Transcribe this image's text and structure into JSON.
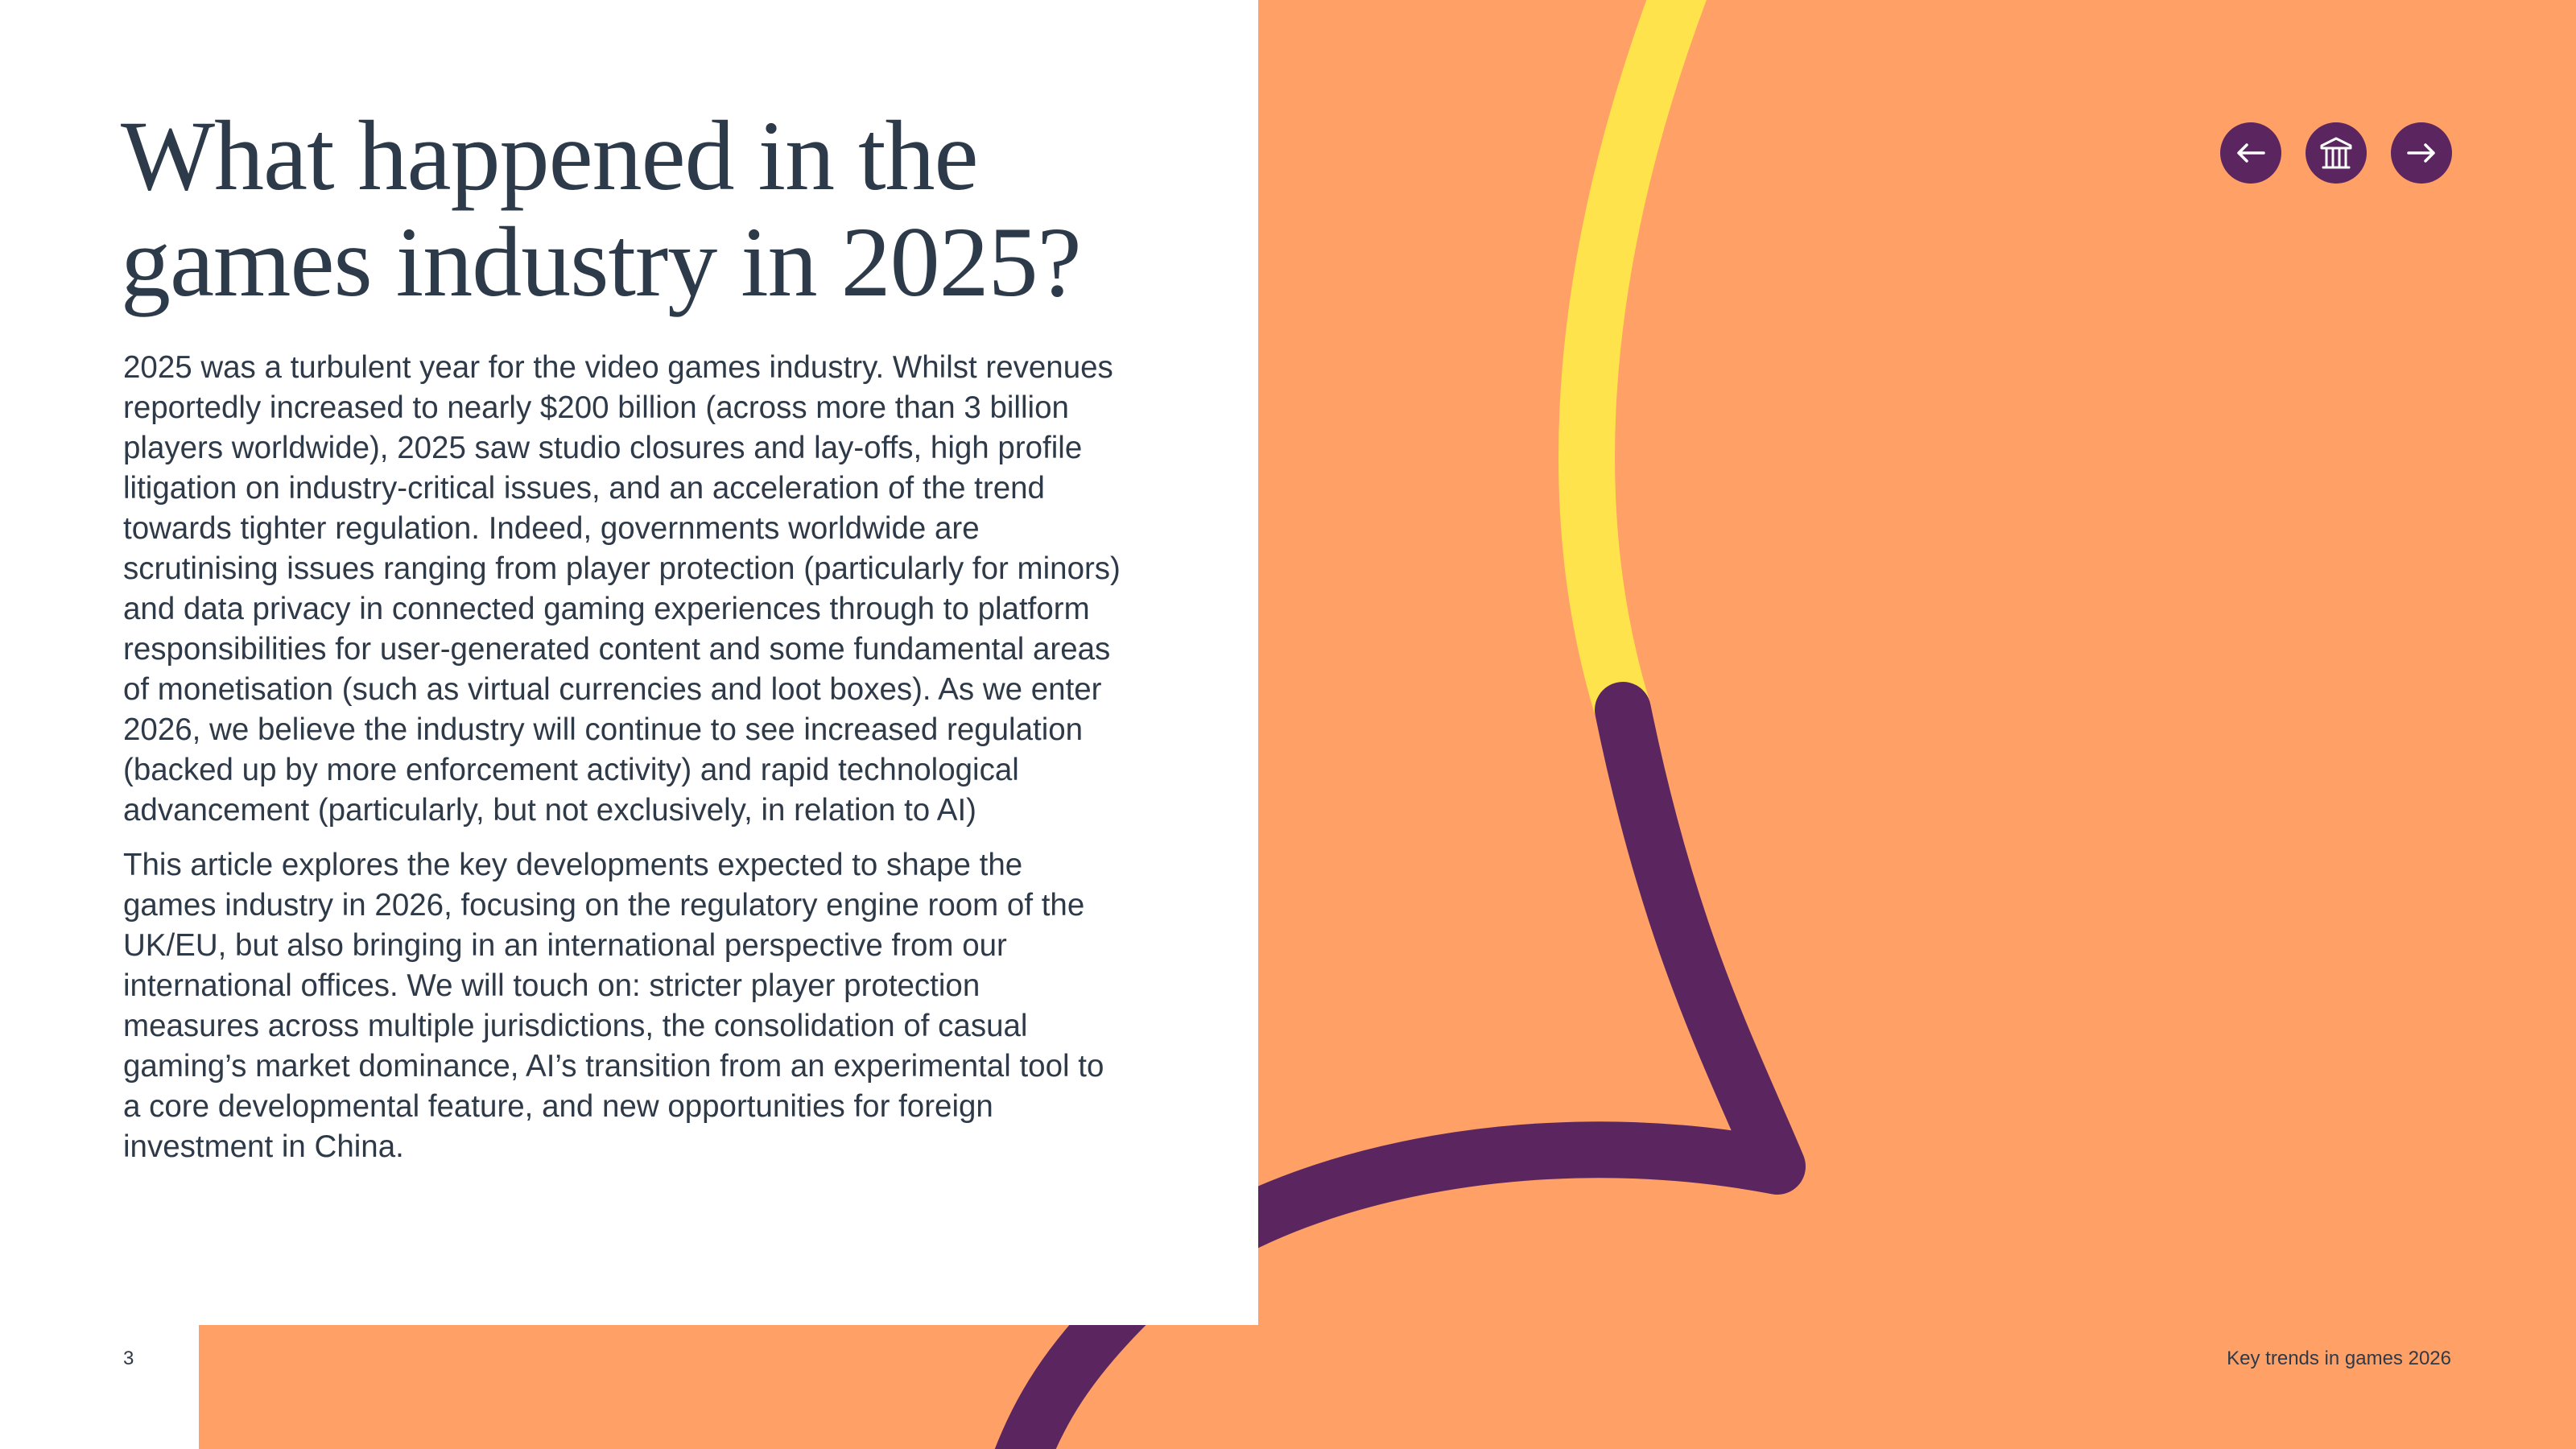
{
  "title": "What happened in the games industry in 2025?",
  "paragraphs": [
    "2025 was a turbulent year for the video games industry. Whilst revenues reportedly increased to nearly $200 billion (across more than 3 billion players worldwide), 2025 saw studio closures and lay-offs, high profile litigation on industry-critical issues, and an acceleration of the trend towards tighter regulation. Indeed, governments worldwide are scrutinising issues ranging from player protection (particularly for minors) and data privacy in connected gaming experiences through to platform responsibilities for user-generated content and some fundamental areas of monetisation (such as virtual currencies and loot boxes). As we enter 2026, we believe the industry will continue to see increased regulation (backed up by more enforcement activity) and rapid technological advancement (particularly, but not exclusively, in relation to AI)",
    "This article explores the key developments expected to shape the games industry in 2026, focusing on the regulatory engine room of the UK/EU, but also bringing in an international perspective from our international offices. We will touch on: stricter player protection measures across multiple jurisdictions, the consolidation of casual gaming’s market dominance, AI’s transition from an experimental tool to a core developmental feature, and new opportunities for foreign investment in China."
  ],
  "nav": {
    "prev_icon": "arrow-left-icon",
    "home_icon": "institution-icon",
    "next_icon": "arrow-right-icon"
  },
  "footer": {
    "page_number": "3",
    "doc_title": "Key trends in games 2026"
  },
  "colors": {
    "background": "#ffa067",
    "purple": "#5b2660",
    "yellow": "#ffe34d",
    "text": "#2d3a4a"
  }
}
